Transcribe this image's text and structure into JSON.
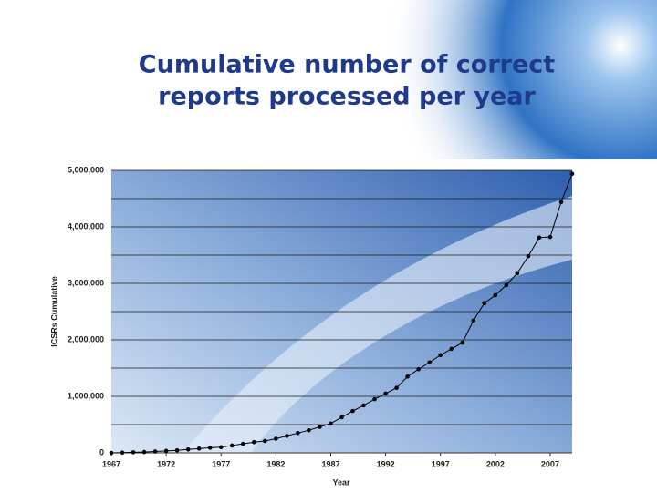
{
  "chart_data": {
    "type": "line",
    "title": [
      "Cumulative number of correct",
      "reports processed per year"
    ],
    "x_label": "Year",
    "y_label": "ICSRs Cumulative",
    "x": [
      1967,
      1968,
      1969,
      1970,
      1971,
      1972,
      1973,
      1974,
      1975,
      1976,
      1977,
      1978,
      1979,
      1980,
      1981,
      1982,
      1983,
      1984,
      1985,
      1986,
      1987,
      1988,
      1989,
      1990,
      1991,
      1992,
      1993,
      1994,
      1995,
      1996,
      1997,
      1998,
      1999,
      2000,
      2001,
      2002,
      2003,
      2004,
      2005,
      2006,
      2007,
      2008,
      2009
    ],
    "series": [
      {
        "name": "ICSRs Cumulative",
        "color": "#000000",
        "values": [
          0,
          5000,
          10000,
          15000,
          25000,
          35000,
          45000,
          60000,
          75000,
          90000,
          100000,
          130000,
          160000,
          190000,
          210000,
          250000,
          300000,
          350000,
          400000,
          460000,
          520000,
          630000,
          740000,
          840000,
          950000,
          1050000,
          1150000,
          1350000,
          1480000,
          1600000,
          1730000,
          1840000,
          1950000,
          2340000,
          2650000,
          2790000,
          2970000,
          3180000,
          3480000,
          3810000,
          3820000,
          4440000,
          4940000
        ]
      }
    ],
    "xlim": [
      1967,
      2009
    ],
    "xticks": [
      1967,
      1972,
      1977,
      1982,
      1987,
      1992,
      1997,
      2002,
      2007
    ],
    "ylim": [
      0,
      5000000
    ],
    "yticks": [
      0,
      {
        "value": 1000000,
        "label": "1,000,000"
      },
      {
        "value": 2000000,
        "label": "2,000,000"
      },
      {
        "value": 3000000,
        "label": "3,000,000"
      },
      {
        "value": 4000000,
        "label": "4,000,000"
      },
      {
        "value": 5000000,
        "label": "5,000,000"
      }
    ],
    "minor_yticks": [
      500000,
      1500000,
      2500000,
      3500000,
      4500000
    ],
    "grid": true
  }
}
